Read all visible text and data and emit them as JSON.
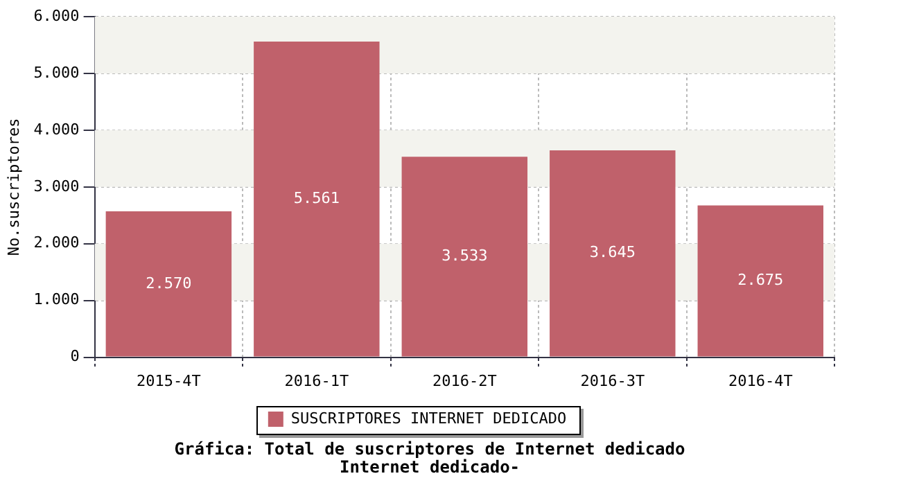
{
  "chart_data": {
    "type": "bar",
    "title": "Gráfica: Total de suscriptores de Internet dedicado",
    "subtitle": "Internet dedicado-",
    "ylabel": "No.suscriptores",
    "categories": [
      "2015-4T",
      "2016-1T",
      "2016-2T",
      "2016-3T",
      "2016-4T"
    ],
    "series": [
      {
        "name": "SUSCRIPTORES INTERNET DEDICADO",
        "color": "#c0616b",
        "values": [
          2570,
          5561,
          3533,
          3645,
          2675
        ],
        "value_labels": [
          "2.570",
          "5.561",
          "3.533",
          "3.645",
          "2.675"
        ]
      }
    ],
    "ylim": [
      0,
      6000
    ],
    "yticks": [
      {
        "value": 0,
        "label": "0"
      },
      {
        "value": 1000,
        "label": "1.000"
      },
      {
        "value": 2000,
        "label": "2.000"
      },
      {
        "value": 3000,
        "label": "3.000"
      },
      {
        "value": 4000,
        "label": "4.000"
      },
      {
        "value": 5000,
        "label": "5.000"
      },
      {
        "value": 6000,
        "label": "6.000"
      }
    ],
    "grid": true,
    "legend": "bottom"
  }
}
